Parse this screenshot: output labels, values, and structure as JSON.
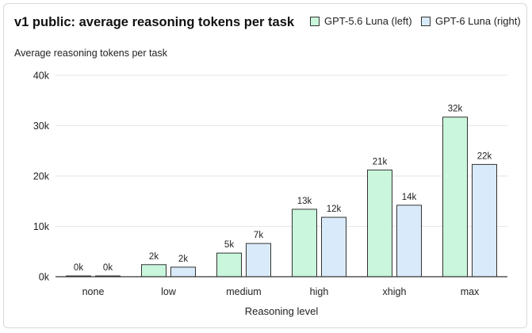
{
  "chart_data": {
    "type": "bar",
    "title": "v1 public: average reasoning tokens per task",
    "ylabel": "Average reasoning tokens per task",
    "xlabel": "Reasoning level",
    "categories": [
      "none",
      "low",
      "medium",
      "high",
      "xhigh",
      "max"
    ],
    "series": [
      {
        "name": "GPT-5.6 Luna (left)",
        "values": [
          50,
          2400,
          4700,
          13400,
          21200,
          31700
        ],
        "labels": [
          "0k",
          "2k",
          "5k",
          "13k",
          "21k",
          "32k"
        ],
        "color": "#c9f6dc"
      },
      {
        "name": "GPT-6 Luna (right)",
        "values": [
          50,
          1900,
          6600,
          11800,
          14200,
          22300
        ],
        "labels": [
          "0k",
          "2k",
          "7k",
          "12k",
          "14k",
          "22k"
        ],
        "color": "#d9ebfb"
      }
    ],
    "ylim": [
      0,
      40000
    ],
    "yticks": [
      0,
      10000,
      20000,
      30000,
      40000
    ],
    "ytick_labels": [
      "0k",
      "10k",
      "20k",
      "30k",
      "40k"
    ],
    "grid": true,
    "legend_position": "top-right",
    "bar_edge_color": "#333333",
    "grid_color": "#e6e6e6"
  }
}
